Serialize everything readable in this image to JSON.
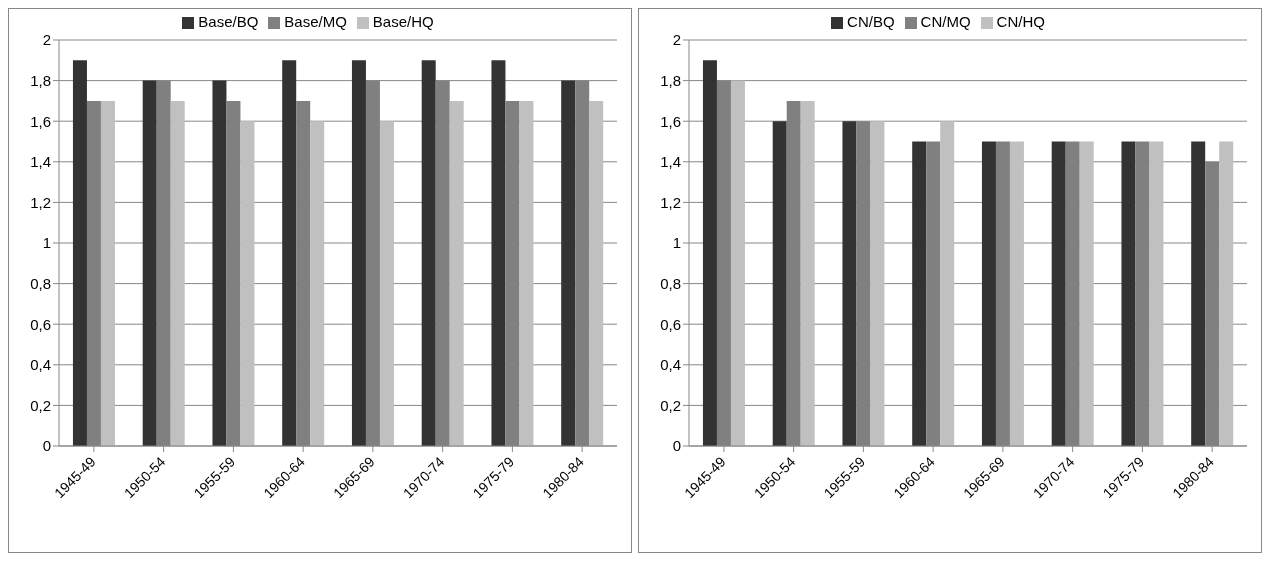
{
  "chart_data": [
    {
      "type": "bar",
      "categories": [
        "1945-49",
        "1950-54",
        "1955-59",
        "1960-64",
        "1965-69",
        "1970-74",
        "1975-79",
        "1980-84"
      ],
      "series": [
        {
          "name": "Base/BQ",
          "color": "#333333",
          "values": [
            1.9,
            1.8,
            1.8,
            1.9,
            1.9,
            1.9,
            1.9,
            1.8
          ]
        },
        {
          "name": "Base/MQ",
          "color": "#808080",
          "values": [
            1.7,
            1.8,
            1.7,
            1.7,
            1.8,
            1.8,
            1.7,
            1.8
          ]
        },
        {
          "name": "Base/HQ",
          "color": "#c0c0c0",
          "values": [
            1.7,
            1.7,
            1.6,
            1.6,
            1.6,
            1.7,
            1.7,
            1.7
          ]
        }
      ],
      "ylim": [
        0,
        2
      ],
      "yticks": [
        0,
        {
          "value": 0.2,
          "label": "0,2"
        },
        {
          "value": 0.4,
          "label": "0,4"
        },
        {
          "value": 0.6,
          "label": "0,6"
        },
        {
          "value": 0.8,
          "label": "0,8"
        },
        1,
        {
          "value": 1.2,
          "label": "1,2"
        },
        {
          "value": 1.4,
          "label": "1,4"
        },
        {
          "value": 1.6,
          "label": "1,6"
        },
        {
          "value": 1.8,
          "label": "1,8"
        },
        2
      ],
      "grid": "y",
      "legend": "top"
    },
    {
      "type": "bar",
      "categories": [
        "1945-49",
        "1950-54",
        "1955-59",
        "1960-64",
        "1965-69",
        "1970-74",
        "1975-79",
        "1980-84"
      ],
      "series": [
        {
          "name": "CN/BQ",
          "color": "#333333",
          "values": [
            1.9,
            1.6,
            1.6,
            1.5,
            1.5,
            1.5,
            1.5,
            1.5
          ]
        },
        {
          "name": "CN/MQ",
          "color": "#808080",
          "values": [
            1.8,
            1.7,
            1.6,
            1.5,
            1.5,
            1.5,
            1.5,
            1.4
          ]
        },
        {
          "name": "CN/HQ",
          "color": "#c0c0c0",
          "values": [
            1.8,
            1.7,
            1.6,
            1.6,
            1.5,
            1.5,
            1.5,
            1.5
          ]
        }
      ],
      "ylim": [
        0,
        2
      ],
      "yticks": [
        0,
        {
          "value": 0.2,
          "label": "0,2"
        },
        {
          "value": 0.4,
          "label": "0,4"
        },
        {
          "value": 0.6,
          "label": "0,6"
        },
        {
          "value": 0.8,
          "label": "0,8"
        },
        1,
        {
          "value": 1.2,
          "label": "1,2"
        },
        {
          "value": 1.4,
          "label": "1,4"
        },
        {
          "value": 1.6,
          "label": "1,6"
        },
        {
          "value": 1.8,
          "label": "1,8"
        },
        2
      ],
      "grid": "y",
      "legend": "top"
    }
  ]
}
